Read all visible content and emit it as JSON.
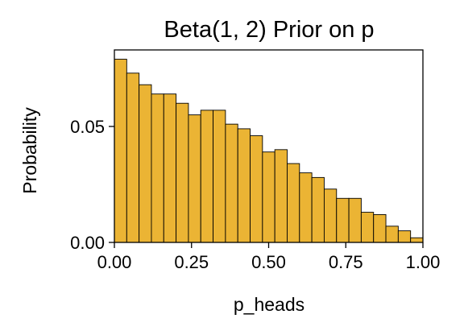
{
  "chart_data": {
    "type": "bar",
    "title": "Beta(1, 2) Prior on p",
    "xlabel": "p_heads",
    "ylabel": "Probability",
    "xlim": [
      0.0,
      1.0
    ],
    "ylim": [
      0.0,
      0.083
    ],
    "grid": false,
    "bin_width": 0.04,
    "bin_starts": [
      0.0,
      0.04,
      0.08,
      0.12,
      0.16,
      0.2,
      0.24,
      0.28,
      0.32,
      0.36,
      0.4,
      0.44,
      0.48,
      0.52,
      0.56,
      0.6,
      0.64,
      0.68,
      0.72,
      0.76,
      0.8,
      0.84,
      0.88,
      0.92,
      0.96
    ],
    "values": [
      0.079,
      0.073,
      0.068,
      0.064,
      0.064,
      0.06,
      0.055,
      0.057,
      0.057,
      0.051,
      0.049,
      0.046,
      0.039,
      0.04,
      0.034,
      0.03,
      0.028,
      0.023,
      0.019,
      0.019,
      0.013,
      0.012,
      0.007,
      0.005,
      0.002
    ],
    "x_ticks": [
      {
        "value": 0.0,
        "label": "0.00"
      },
      {
        "value": 0.25,
        "label": "0.25"
      },
      {
        "value": 0.5,
        "label": "0.50"
      },
      {
        "value": 0.75,
        "label": "0.75"
      },
      {
        "value": 1.0,
        "label": "1.00"
      }
    ],
    "y_ticks": [
      {
        "value": 0.0,
        "label": "0.00"
      },
      {
        "value": 0.05,
        "label": "0.05"
      }
    ],
    "colors": {
      "bar_fill": "#ebb434",
      "bar_edge": "#000000"
    }
  }
}
